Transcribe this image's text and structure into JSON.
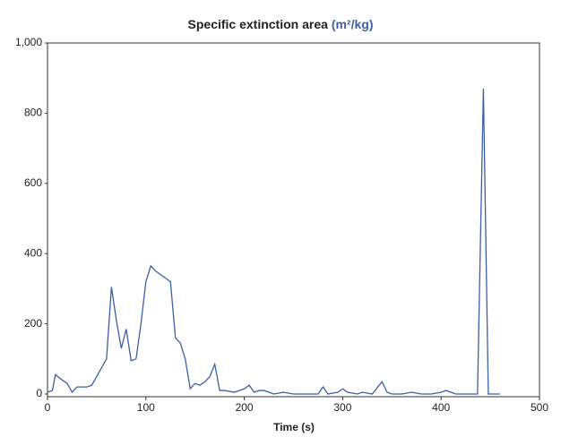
{
  "chart_data": {
    "type": "line",
    "title": "Specific extinction area",
    "title_units": "(m²/kg)",
    "x_label": "Time (s)",
    "x": [
      0,
      5,
      8,
      15,
      20,
      25,
      30,
      40,
      45,
      50,
      55,
      60,
      65,
      70,
      75,
      80,
      85,
      90,
      95,
      100,
      105,
      110,
      115,
      120,
      125,
      130,
      135,
      140,
      145,
      150,
      155,
      160,
      165,
      170,
      175,
      180,
      190,
      200,
      205,
      210,
      215,
      220,
      230,
      240,
      250,
      260,
      275,
      280,
      285,
      295,
      300,
      305,
      315,
      320,
      330,
      340,
      345,
      350,
      360,
      370,
      380,
      390,
      400,
      405,
      410,
      415,
      430,
      437,
      443,
      448,
      455,
      460
    ],
    "series": [
      {
        "name": "Specific extinction area",
        "color": "#3d5fa6",
        "values": [
          5,
          10,
          55,
          40,
          30,
          5,
          20,
          20,
          25,
          50,
          75,
          100,
          305,
          210,
          130,
          185,
          95,
          100,
          200,
          320,
          365,
          350,
          340,
          330,
          320,
          160,
          145,
          100,
          15,
          30,
          25,
          35,
          50,
          85,
          10,
          10,
          5,
          15,
          25,
          5,
          10,
          10,
          0,
          5,
          0,
          0,
          0,
          20,
          0,
          5,
          15,
          5,
          0,
          5,
          0,
          35,
          5,
          0,
          0,
          5,
          0,
          0,
          5,
          10,
          5,
          0,
          0,
          0,
          870,
          0,
          0,
          0
        ]
      }
    ],
    "xlim": [
      0,
      500
    ],
    "xticks": [
      0,
      100,
      200,
      300,
      400,
      500
    ],
    "ylim": [
      0,
      1000
    ],
    "yticks": [
      0,
      200,
      400,
      600,
      800,
      {
        "value": 1000,
        "label": "1,000"
      }
    ],
    "title_units_color": "#3d5fa6"
  }
}
